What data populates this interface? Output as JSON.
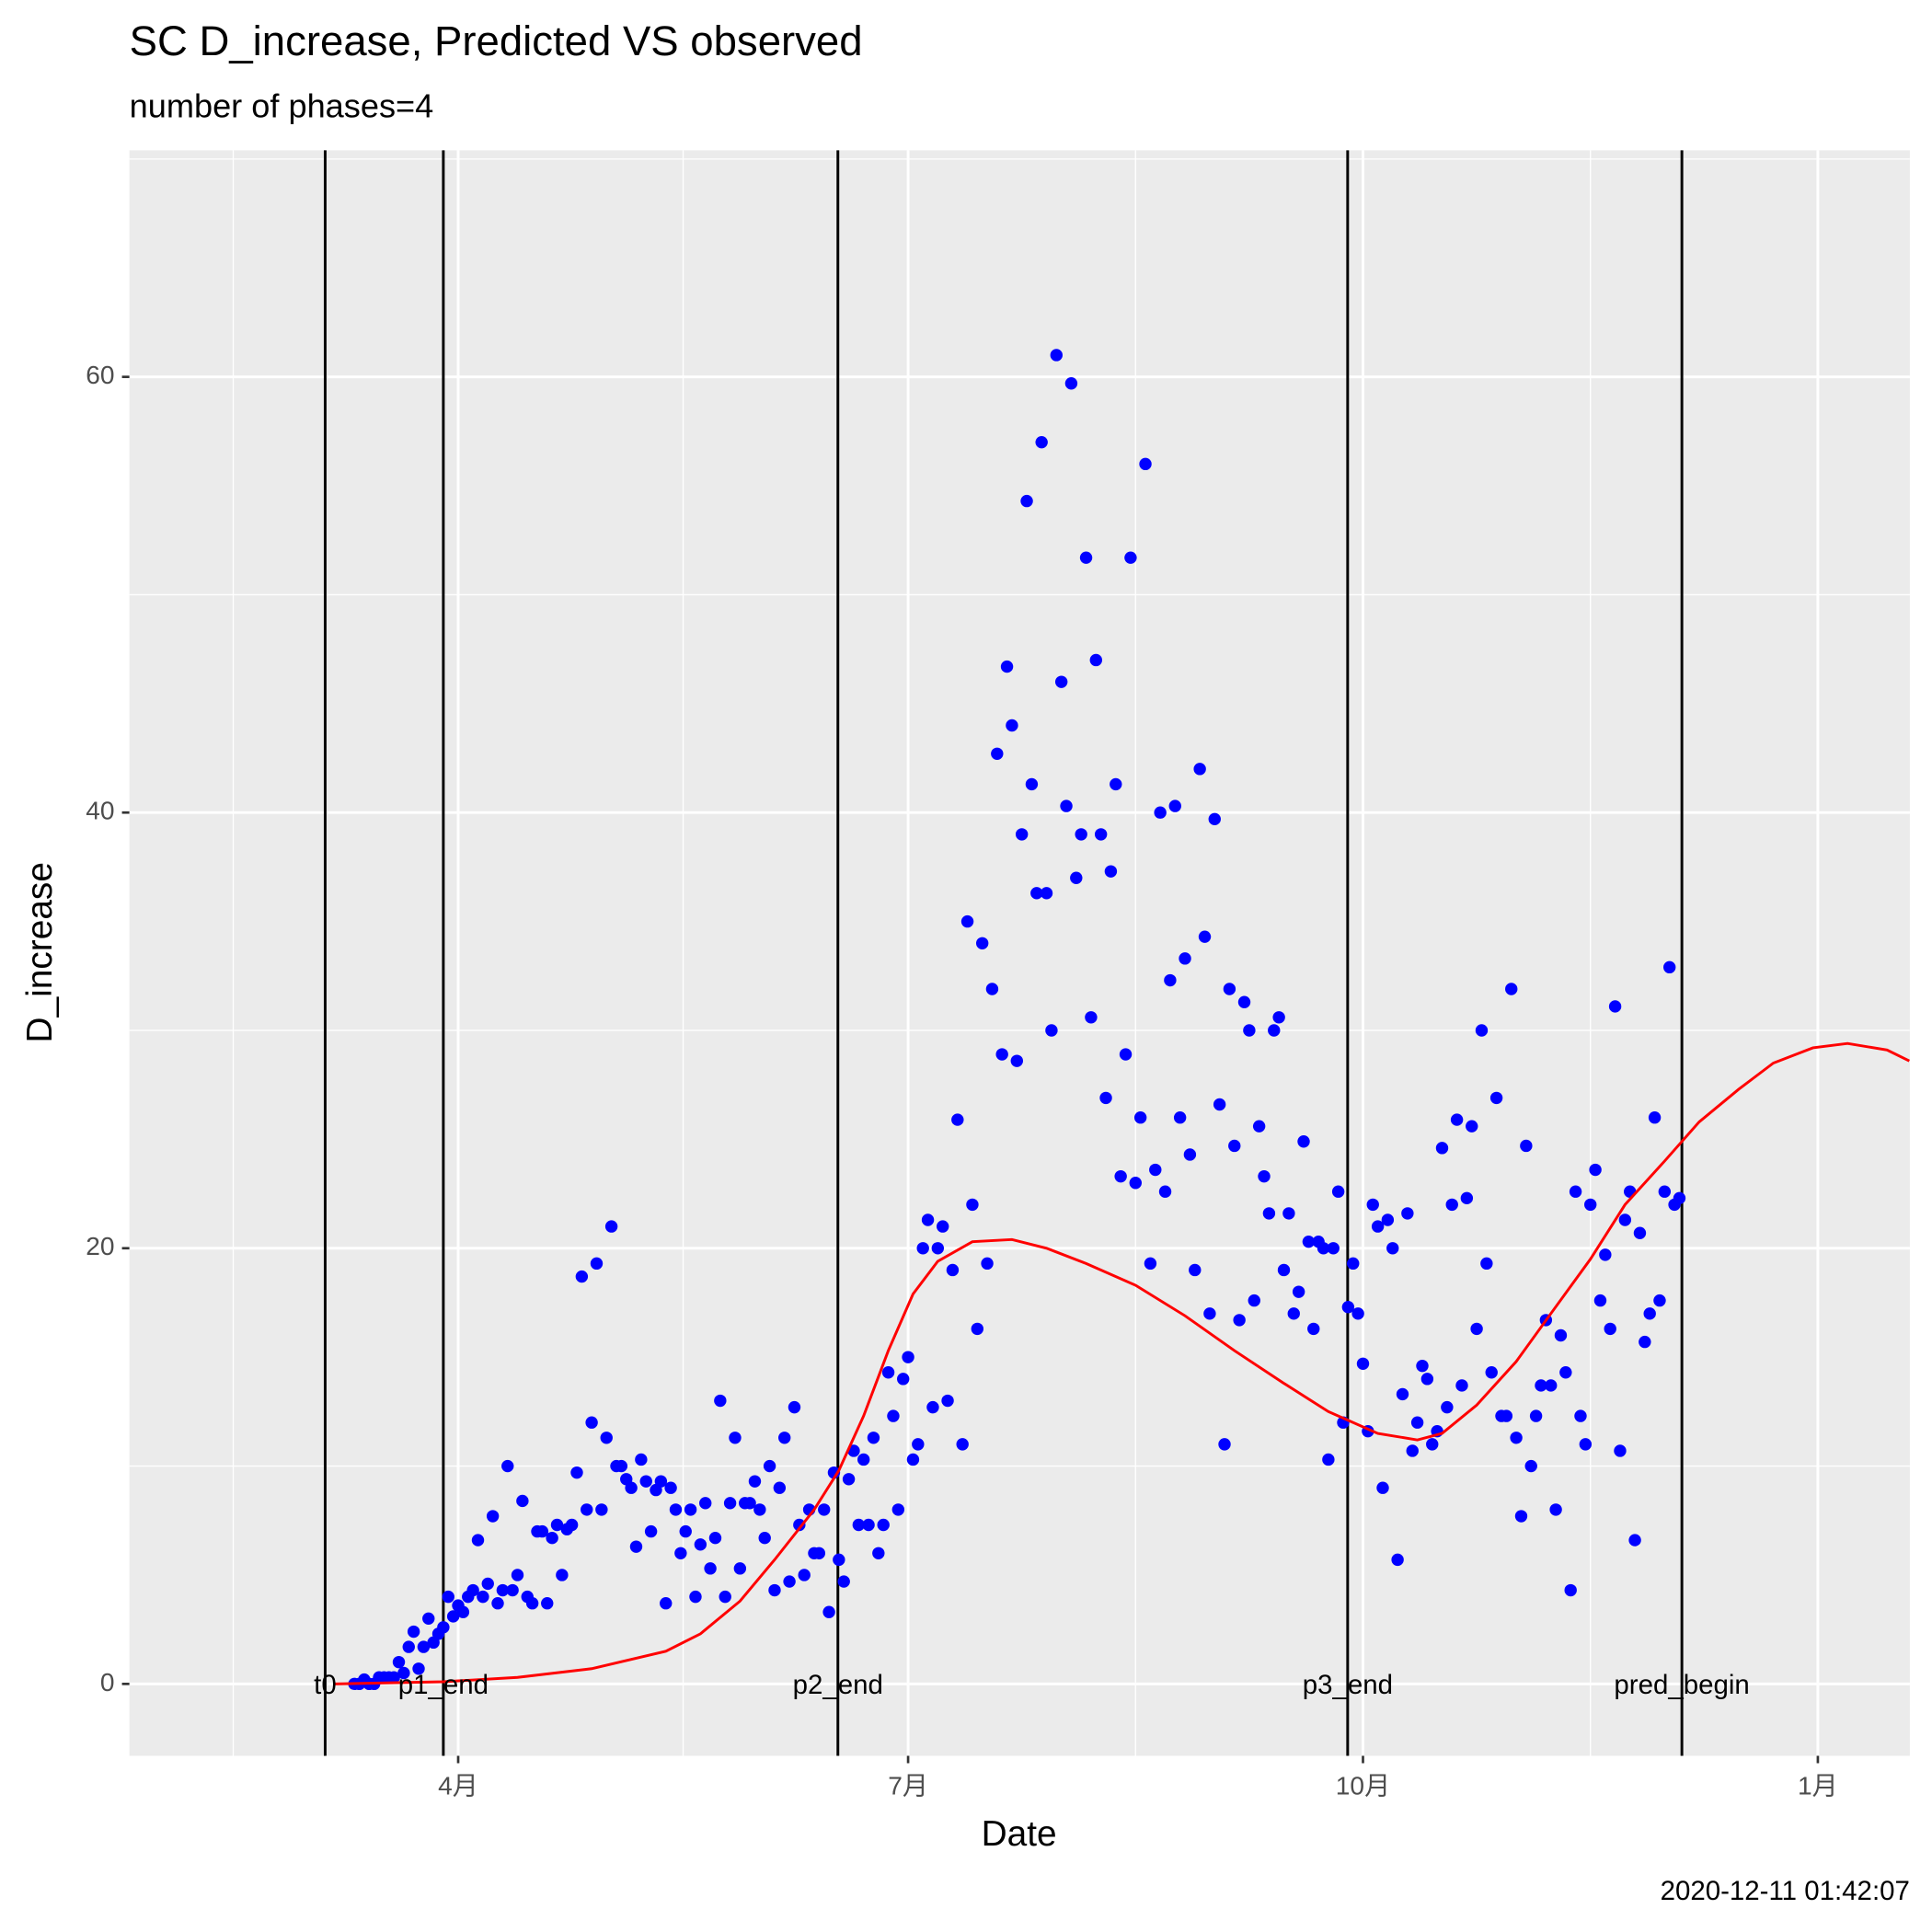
{
  "chart_data": {
    "type": "scatter",
    "title": "SC D_increase, Predicted VS observed",
    "subtitle": "number of phases=4",
    "x_label": "Date",
    "y_label": "D_increase",
    "caption": "2020-12-11 01:42:07",
    "xlim": [
      24.5,
      384.6
    ],
    "ylim": [
      -3.3,
      70.4
    ],
    "xticks": [
      {
        "value": 91,
        "label": "4月"
      },
      {
        "value": 182,
        "label": "7月"
      },
      {
        "value": 274,
        "label": "10月"
      },
      {
        "value": 366,
        "label": "1月"
      }
    ],
    "yticks": [
      0,
      20,
      40,
      60
    ],
    "grid": true,
    "points": {
      "color": "#0000ff",
      "x": [
        70,
        71,
        72,
        73,
        74,
        75,
        76,
        77,
        78,
        79,
        80,
        81,
        82,
        83,
        84,
        85,
        86,
        87,
        88,
        89,
        90,
        91,
        92,
        93,
        94,
        95,
        96,
        97,
        98,
        99,
        100,
        101,
        102,
        103,
        104,
        105,
        106,
        107,
        108,
        109,
        110,
        111,
        112,
        113,
        114,
        115,
        116,
        117,
        118,
        119,
        120,
        121,
        122,
        123,
        124,
        125,
        126,
        127,
        128,
        129,
        130,
        131,
        132,
        133,
        134,
        135,
        136,
        137,
        138,
        139,
        140,
        141,
        142,
        143,
        144,
        145,
        146,
        147,
        148,
        149,
        150,
        151,
        152,
        153,
        154,
        155,
        156,
        157,
        158,
        159,
        160,
        161,
        162,
        163,
        164,
        165,
        166,
        167,
        168,
        169,
        170,
        171,
        172,
        173,
        174,
        175,
        176,
        177,
        178,
        179,
        180,
        181,
        182,
        183,
        184,
        185,
        186,
        187,
        188,
        189,
        190,
        191,
        192,
        193,
        194,
        195,
        196,
        197,
        198,
        199,
        200,
        201,
        202,
        203,
        204,
        205,
        206,
        207,
        208,
        209,
        210,
        211,
        212,
        213,
        214,
        215,
        216,
        217,
        218,
        219,
        220,
        221,
        222,
        223,
        224,
        225,
        226,
        227,
        228,
        229,
        230,
        231,
        232,
        233,
        234,
        235,
        236,
        237,
        238,
        239,
        240,
        241,
        242,
        243,
        244,
        245,
        246,
        247,
        248,
        249,
        250,
        251,
        252,
        253,
        254,
        255,
        256,
        257,
        258,
        259,
        260,
        261,
        262,
        263,
        264,
        265,
        266,
        267,
        268,
        269,
        270,
        271,
        272,
        273,
        274,
        275,
        276,
        277,
        278,
        279,
        280,
        281,
        282,
        283,
        284,
        285,
        286,
        287,
        288,
        289,
        290,
        291,
        292,
        293,
        294,
        295,
        296,
        297,
        298,
        299,
        300,
        301,
        302,
        303,
        304,
        305,
        306,
        307,
        308,
        309,
        310,
        311,
        312,
        313,
        314,
        315,
        316,
        317,
        318,
        319,
        320,
        321,
        322,
        323,
        324,
        325,
        326,
        327,
        328,
        329,
        330,
        331,
        332,
        333,
        334,
        335,
        336,
        337,
        338
      ],
      "values": [
        0,
        0,
        0.2,
        0,
        0,
        0.3,
        0.3,
        0.3,
        0.3,
        1,
        0.5,
        1.7,
        2.4,
        0.7,
        1.7,
        3,
        1.9,
        2.3,
        2.6,
        4,
        3.1,
        3.6,
        3.3,
        4,
        4.3,
        6.6,
        4,
        4.6,
        7.7,
        3.7,
        4.3,
        10,
        4.3,
        5,
        8.4,
        4,
        3.7,
        7,
        7,
        3.7,
        6.7,
        7.3,
        5,
        7.1,
        7.3,
        9.7,
        18.7,
        8,
        12,
        19.3,
        8,
        11.3,
        21,
        10,
        10,
        9.4,
        9,
        6.3,
        10.3,
        9.3,
        7,
        8.9,
        9.3,
        3.7,
        9,
        8,
        6,
        7,
        8,
        4,
        6.4,
        8.3,
        5.3,
        6.7,
        13,
        4,
        8.3,
        11.3,
        5.3,
        8.3,
        8.3,
        9.3,
        8,
        6.7,
        10,
        4.3,
        9,
        11.3,
        4.7,
        12.7,
        7.3,
        5,
        8,
        6,
        6,
        8,
        3.3,
        9.7,
        5.7,
        4.7,
        9.4,
        10.7,
        7.3,
        10.3,
        7.3,
        11.3,
        6,
        7.3,
        14.3,
        12.3,
        8,
        14,
        15,
        10.3,
        11,
        20,
        21.3,
        12.7,
        20,
        21,
        13,
        19,
        25.9,
        11,
        35,
        22,
        16.3,
        34,
        19.3,
        31.9,
        42.7,
        28.9,
        46.7,
        44,
        28.6,
        39,
        54.3,
        41.3,
        36.3,
        57,
        36.3,
        30,
        61,
        46,
        40.3,
        59.7,
        37,
        39,
        51.7,
        30.6,
        47,
        39,
        26.9,
        37.3,
        41.3,
        23.3,
        28.9,
        51.7,
        23,
        26,
        56,
        19.3,
        23.6,
        40,
        22.6,
        32.3,
        40.3,
        26,
        33.3,
        24.3,
        19,
        42,
        34.3,
        17,
        39.7,
        26.6,
        11,
        31.9,
        24.7,
        16.7,
        31.3,
        30,
        17.6,
        25.6,
        23.3,
        21.6,
        30,
        30.6,
        19,
        21.6,
        17,
        18,
        24.9,
        20.3,
        16.3,
        20.3,
        20,
        10.3,
        20,
        22.6,
        12,
        17.3,
        19.3,
        17,
        14.7,
        11.6,
        22,
        21,
        9,
        21.3,
        20,
        5.7,
        13.3,
        21.6,
        10.7,
        12,
        14.6,
        14,
        11,
        11.6,
        24.6,
        12.7,
        22,
        25.9,
        13.7,
        22.3,
        25.6,
        16.3,
        30,
        19.3,
        14.3,
        26.9,
        12.3,
        12.3,
        31.9,
        11.3,
        7.7,
        24.7,
        10,
        12.3,
        13.7,
        16.7,
        13.7,
        8,
        16,
        14.3,
        4.3,
        22.6,
        12.3,
        11,
        22,
        23.6,
        17.6,
        19.7,
        16.3,
        31.1,
        10.7,
        21.3,
        22.6,
        6.6,
        20.7,
        15.7,
        17,
        26,
        17.6,
        22.6,
        32.9,
        22,
        22.3
      ]
    },
    "line": {
      "color": "#ff0000",
      "x": [
        66,
        88,
        103,
        118,
        133,
        140,
        148,
        155,
        163,
        168,
        173,
        178,
        183,
        188,
        195,
        203,
        210,
        218,
        228,
        238,
        248,
        258,
        267,
        277,
        285,
        290,
        297,
        305,
        312,
        320,
        327,
        335,
        342,
        350,
        357,
        365,
        372,
        380,
        384.5
      ],
      "values": [
        0,
        0.1,
        0.3,
        0.7,
        1.5,
        2.3,
        3.8,
        5.7,
        8,
        9.8,
        12.3,
        15.3,
        17.9,
        19.4,
        20.3,
        20.4,
        20,
        19.3,
        18.3,
        16.9,
        15.3,
        13.8,
        12.5,
        11.5,
        11.2,
        11.5,
        12.8,
        14.8,
        17,
        19.5,
        22,
        24,
        25.8,
        27.3,
        28.5,
        29.2,
        29.4,
        29.1,
        28.6
      ]
    },
    "vlines": [
      {
        "x": 64.1,
        "label": "t0"
      },
      {
        "x": 88,
        "label": "p1_end"
      },
      {
        "x": 167.8,
        "label": "p2_end"
      },
      {
        "x": 270.9,
        "label": "p3_end"
      },
      {
        "x": 338.5,
        "label": "pred_begin"
      }
    ]
  }
}
